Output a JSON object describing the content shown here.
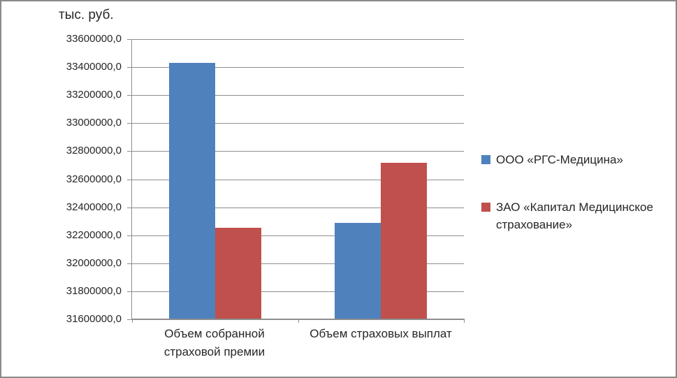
{
  "window": {
    "background": "#FFFFFF",
    "frame_border_color": "#8A8A8A"
  },
  "chart_data": {
    "type": "bar",
    "title": "тыс. руб.",
    "categories": [
      "Объем собранной страховой премии",
      "Объем страховых выплат"
    ],
    "category_lines": [
      [
        "Объем собранной",
        "страховой премии"
      ],
      [
        "Объем страховых выплат"
      ]
    ],
    "series": [
      {
        "name": "ООО «РГС-Медицина»",
        "color": "#4F81BD",
        "values": [
          33425000,
          32285000
        ]
      },
      {
        "name": "ЗАО «Капитал Медицинское страхование»",
        "color": "#C0504D",
        "values": [
          32250000,
          32710000
        ]
      }
    ],
    "xlabel": "",
    "ylabel": "тыс. руб.",
    "ylim": [
      31600000,
      33600000
    ],
    "ytick_step": 200000,
    "ytick_labels": [
      "31600000,0",
      "31800000,0",
      "32000000,0",
      "32200000,0",
      "32400000,0",
      "32600000,0",
      "32800000,0",
      "33000000,0",
      "33200000,0",
      "33400000,0",
      "33600000,0"
    ],
    "grid": true,
    "gridline_color": "#8E8E8E",
    "axis_color": "#8E8E8E",
    "text_color": "#262626",
    "legend_position": "right"
  }
}
